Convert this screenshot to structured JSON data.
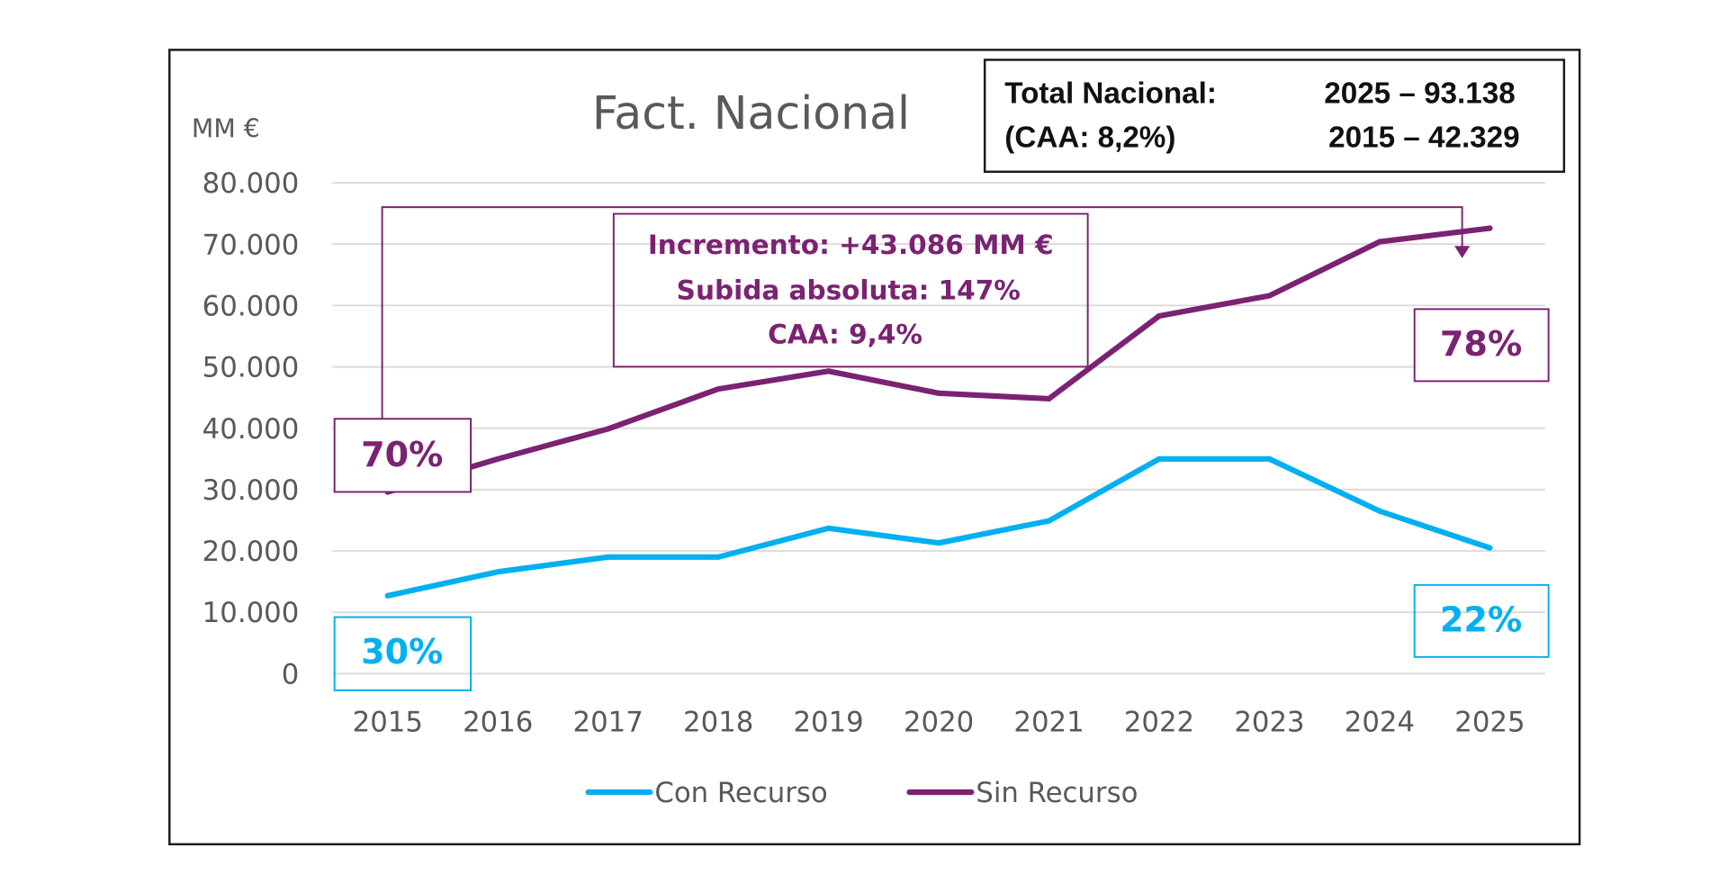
{
  "chart_data": {
    "type": "line",
    "title": "Fact. Nacional",
    "ylabel": "MM €",
    "xlabel": "",
    "ylim": [
      0,
      80000
    ],
    "grid": true,
    "legend_position": "bottom",
    "y_ticks": [
      {
        "value": 0,
        "label": "0"
      },
      {
        "value": 10000,
        "label": "10.000"
      },
      {
        "value": 20000,
        "label": "20.000"
      },
      {
        "value": 30000,
        "label": "30.000"
      },
      {
        "value": 40000,
        "label": "40.000"
      },
      {
        "value": 50000,
        "label": "50.000"
      },
      {
        "value": 60000,
        "label": "60.000"
      },
      {
        "value": 70000,
        "label": "70.000"
      },
      {
        "value": 80000,
        "label": "80.000"
      }
    ],
    "categories": [
      "2015",
      "2016",
      "2017",
      "2018",
      "2019",
      "2020",
      "2021",
      "2022",
      "2023",
      "2024",
      "2025"
    ],
    "series": [
      {
        "name": "Con Recurso",
        "color": "#00B0F0",
        "values": [
          12700,
          16600,
          19000,
          19000,
          23700,
          21300,
          24900,
          35000,
          35000,
          26500,
          20500
        ]
      },
      {
        "name": "Sin Recurso",
        "color": "#7B2272",
        "values": [
          29600,
          35000,
          39900,
          46400,
          49300,
          45700,
          44800,
          58300,
          61600,
          70400,
          72600
        ]
      }
    ],
    "annotations": {
      "total_box": {
        "line1_label": "Total Nacional:",
        "line1_value": "2025 – 93.138",
        "line2_label": "(CAA: 8,2%)",
        "line2_value": "2015 – 42.329"
      },
      "increment_box": {
        "line1": "Incremento: +43.086 MM €",
        "line2": "Subida absoluta: 147%",
        "line3": "CAA: 9,4%",
        "color": "#7B2272"
      },
      "share_labels": [
        {
          "series": "Sin Recurso",
          "year": "2015",
          "text": "70%",
          "color": "#7B2272"
        },
        {
          "series": "Con Recurso",
          "year": "2015",
          "text": "30%",
          "color": "#00B0F0"
        },
        {
          "series": "Sin Recurso",
          "year": "2025",
          "text": "78%",
          "color": "#7B2272"
        },
        {
          "series": "Con Recurso",
          "year": "2025",
          "text": "22%",
          "color": "#00B0F0"
        }
      ]
    }
  }
}
